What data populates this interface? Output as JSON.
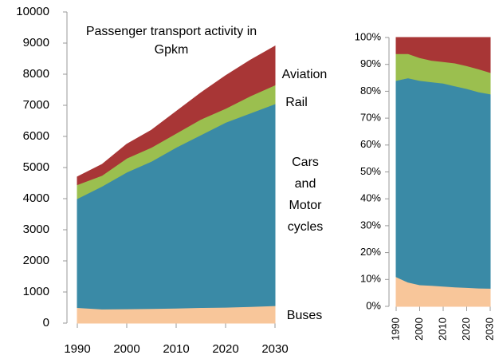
{
  "chart_data": [
    {
      "type": "stacked_area",
      "title": "Passenger transport activity in Gpkm",
      "x": [
        1990,
        1995,
        2000,
        2005,
        2010,
        2015,
        2020,
        2025,
        2030
      ],
      "xlim": [
        1990,
        2030
      ],
      "xticks": [
        1990,
        2000,
        2010,
        2020,
        2030
      ],
      "ylim": [
        0,
        10000
      ],
      "yticks": [
        0,
        1000,
        2000,
        3000,
        4000,
        5000,
        6000,
        7000,
        8000,
        9000,
        10000
      ],
      "series": [
        {
          "name": "Buses",
          "color": "#f8c69a",
          "values": [
            500,
            450,
            460,
            470,
            480,
            500,
            510,
            530,
            560
          ]
        },
        {
          "name": "Cars and Motor cycles",
          "color": "#3a8aa6",
          "values": [
            3500,
            3950,
            4390,
            4730,
            5170,
            5550,
            5940,
            6220,
            6490
          ]
        },
        {
          "name": "Rail",
          "color": "#9bbf4f",
          "values": [
            450,
            350,
            450,
            450,
            450,
            500,
            450,
            550,
            600
          ]
        },
        {
          "name": "Aviation",
          "color": "#a83636",
          "values": [
            250,
            350,
            450,
            550,
            700,
            850,
            1050,
            1150,
            1250
          ]
        }
      ]
    },
    {
      "type": "stacked_area",
      "x": [
        1990,
        1995,
        2000,
        2005,
        2010,
        2015,
        2020,
        2025,
        2030
      ],
      "xlim": [
        1990,
        2030
      ],
      "xticks": [
        1990,
        2000,
        2010,
        2020,
        2030
      ],
      "ylim": [
        0,
        100
      ],
      "yticks": [
        {
          "value": 0,
          "label": "0%"
        },
        {
          "value": 10,
          "label": "10%"
        },
        {
          "value": 20,
          "label": "20%"
        },
        {
          "value": 30,
          "label": "30%"
        },
        {
          "value": 40,
          "label": "40%"
        },
        {
          "value": 50,
          "label": "50%"
        },
        {
          "value": 60,
          "label": "60%"
        },
        {
          "value": 70,
          "label": "70%"
        },
        {
          "value": 80,
          "label": "80%"
        },
        {
          "value": 90,
          "label": "90%"
        },
        {
          "value": 100,
          "label": "100%"
        }
      ],
      "series": [
        {
          "color": "#f8c69a",
          "values": [
            11,
            9,
            8,
            7.8,
            7.5,
            7.2,
            7,
            6.8,
            6.7
          ]
        },
        {
          "color": "#3a8aa6",
          "values": [
            73,
            76,
            76,
            75.7,
            75.5,
            74.8,
            74,
            73,
            72.3
          ]
        },
        {
          "color": "#9bbf4f",
          "values": [
            10,
            9,
            8.5,
            8,
            8,
            8.5,
            8.5,
            8.5,
            8
          ]
        },
        {
          "color": "#a83636",
          "values": [
            6,
            6,
            7.5,
            8.5,
            9,
            9.5,
            10.5,
            11.7,
            13
          ]
        }
      ]
    }
  ]
}
